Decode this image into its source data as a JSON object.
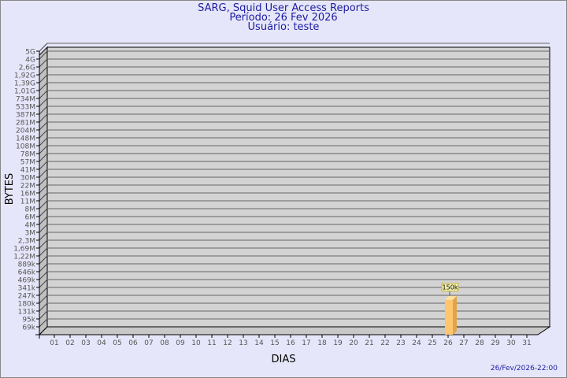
{
  "chart_data": {
    "type": "bar",
    "title": "SARG, Squid User Access Reports",
    "subtitle_period": "Período: 26 Fev 2026",
    "subtitle_user": "Usuário: teste",
    "xlabel": "DIAS",
    "ylabel": "BYTES",
    "y_scale": "log",
    "y_tick_labels": [
      "5G",
      "4G",
      "2,6G",
      "1,92G",
      "1,39G",
      "1,01G",
      "734M",
      "533M",
      "387M",
      "281M",
      "204M",
      "148M",
      "108M",
      "78M",
      "57M",
      "41M",
      "30M",
      "22M",
      "16M",
      "11M",
      "8M",
      "6M",
      "4M",
      "3M",
      "2,3M",
      "1,69M",
      "1,22M",
      "889k",
      "646k",
      "469k",
      "341k",
      "247k",
      "180k",
      "131k",
      "95k",
      "69k"
    ],
    "y_tick_values": [
      5000000000,
      4000000000,
      2600000000,
      1920000000,
      1390000000,
      1010000000,
      734000000,
      533000000,
      387000000,
      281000000,
      204000000,
      148000000,
      108000000,
      78000000,
      57000000,
      41000000,
      30000000,
      22000000,
      16000000,
      11000000,
      8000000,
      6000000,
      4000000,
      3000000,
      2300000,
      1690000,
      1220000,
      889000,
      646000,
      469000,
      341000,
      247000,
      180000,
      131000,
      95000,
      69000
    ],
    "categories": [
      "01",
      "02",
      "03",
      "04",
      "05",
      "06",
      "07",
      "08",
      "09",
      "10",
      "11",
      "12",
      "13",
      "14",
      "15",
      "16",
      "17",
      "18",
      "19",
      "20",
      "21",
      "22",
      "23",
      "24",
      "25",
      "26",
      "27",
      "28",
      "29",
      "30",
      "31"
    ],
    "bars": [
      {
        "category": "26",
        "value": 150000,
        "label": "150k"
      }
    ],
    "grid": true,
    "colors": {
      "bar_front": "#ffc66e",
      "bar_side": "#e0a44c",
      "bar_top": "#ffe0a0",
      "plot_bg": "#d3d3d3",
      "text": "#1c1ca0",
      "tick_text": "#555555"
    }
  },
  "footer": {
    "timestamp": "26/Fev/2026-22:00"
  }
}
